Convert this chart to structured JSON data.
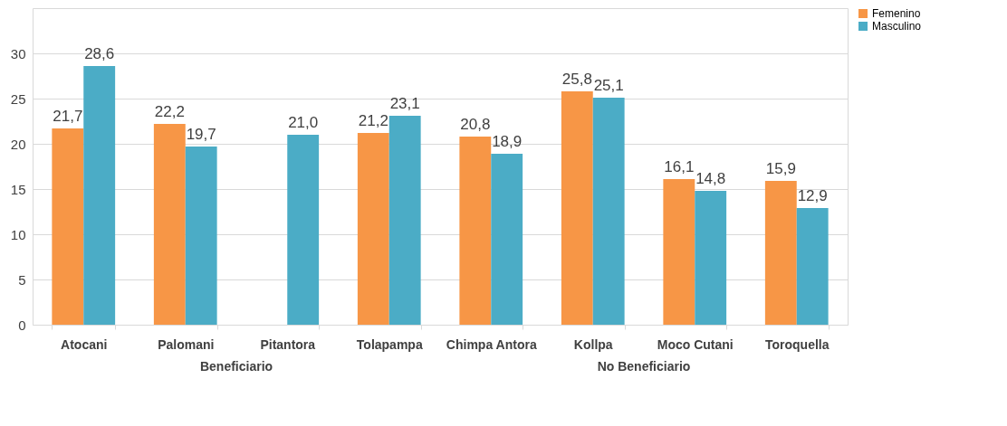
{
  "chart_data": {
    "type": "bar",
    "categories": [
      "Atocani",
      "Palomani",
      "Pitantora",
      "Tolapampa",
      "Chimpa Antora",
      "Kollpa",
      "Moco Cutani",
      "Toroquella"
    ],
    "series": [
      {
        "name": "Femenino",
        "color": "#f79646",
        "values": [
          21.7,
          22.2,
          null,
          21.2,
          20.8,
          25.8,
          16.1,
          15.9
        ],
        "value_labels": [
          "21,7",
          "22,2",
          null,
          "21,2",
          "20,8",
          "25,8",
          "16,1",
          "15,9"
        ]
      },
      {
        "name": "Masculino",
        "color": "#4bacc6",
        "values": [
          28.6,
          19.7,
          21.0,
          23.1,
          18.9,
          25.1,
          14.8,
          12.9
        ],
        "value_labels": [
          "28,6",
          "19,7",
          "21,0",
          "23,1",
          "18,9",
          "25,1",
          "14,8",
          "12,9"
        ]
      }
    ],
    "ylim": [
      0,
      35
    ],
    "yticks": [
      0,
      5,
      10,
      15,
      20,
      25,
      30
    ],
    "grid": "y",
    "legend": "top right",
    "annotations": [
      "Beneficiario",
      "No Beneficiario"
    ]
  }
}
